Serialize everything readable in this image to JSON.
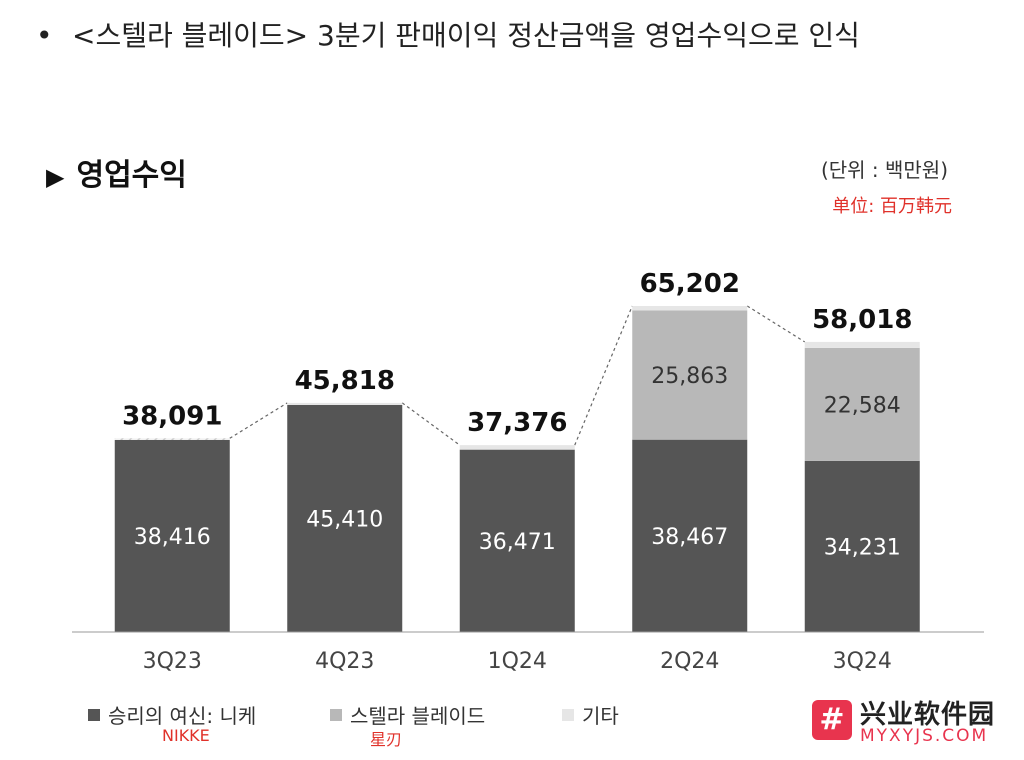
{
  "headline": {
    "bullet": "•",
    "text": "<스텔라 블레이드> 3분기 판매이익 정산금액을 영업수익으로 인식"
  },
  "section": {
    "marker": "▶",
    "title": "영업수익"
  },
  "unit": {
    "korean": "(단위 : 백만원)",
    "chinese": "单位:  百万韩元"
  },
  "legend": [
    {
      "label": "승리의 여신: 니케",
      "note": "NIKKE",
      "color": "#555555"
    },
    {
      "label": "스텔라 블레이드",
      "note": "星刃",
      "color": "#b8b8b8"
    },
    {
      "label": "기타",
      "note": "",
      "color": "#e6e6e6"
    }
  ],
  "watermark": {
    "logo": "#",
    "name": "兴业软件园",
    "url": "MYXYJS.COM"
  },
  "chart_data": {
    "type": "bar",
    "stacked": true,
    "categories": [
      "3Q23",
      "4Q23",
      "1Q24",
      "2Q24",
      "3Q24"
    ],
    "totals": [
      "38,091",
      "45,818",
      "37,376",
      "65,202",
      "58,018"
    ],
    "total_values": [
      38091,
      45818,
      37376,
      65202,
      58018
    ],
    "series": [
      {
        "name": "승리의 여신: 니케",
        "color": "#555555",
        "values": [
          38416,
          45410,
          36471,
          38467,
          34231
        ],
        "labels": [
          "38,416",
          "45,410",
          "36,471",
          "38,467",
          "34,231"
        ]
      },
      {
        "name": "스텔라 블레이드",
        "color": "#b8b8b8",
        "values": [
          0,
          0,
          0,
          25863,
          22584
        ],
        "labels": [
          "",
          "",
          "",
          "25,863",
          "22,584"
        ]
      },
      {
        "name": "기타",
        "color": "#e6e6e6",
        "values": [
          -325,
          408,
          905,
          872,
          1203
        ],
        "labels": [
          "",
          "",
          "",
          "",
          ""
        ]
      }
    ],
    "ylim": [
      0,
      70000
    ],
    "grid": false,
    "connector_lines": "dashed",
    "legend_position": "bottom"
  }
}
